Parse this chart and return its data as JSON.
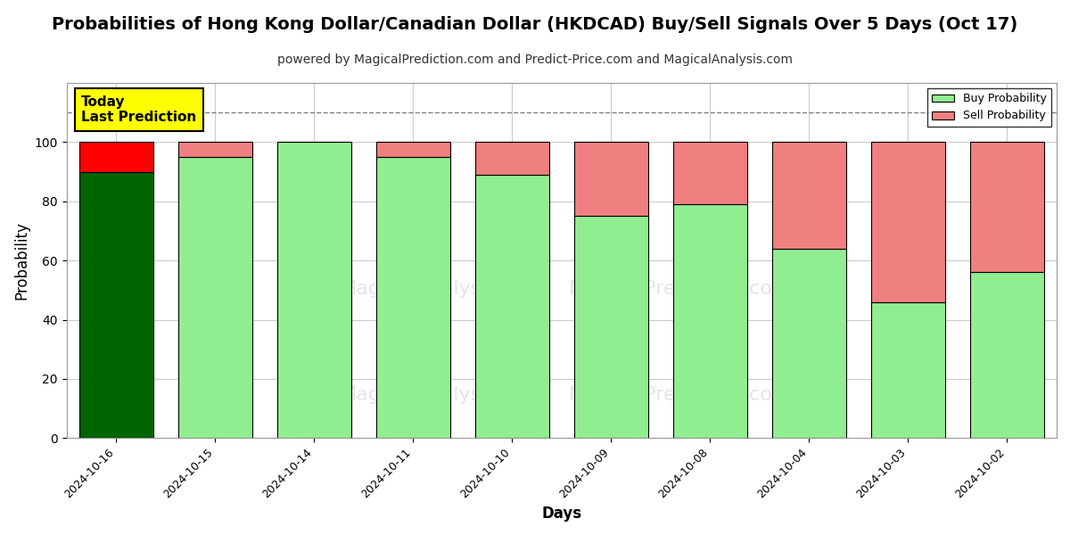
{
  "title": "Probabilities of Hong Kong Dollar/Canadian Dollar (HKDCAD) Buy/Sell Signals Over 5 Days (Oct 17)",
  "subtitle": "powered by MagicalPrediction.com and Predict-Price.com and MagicalAnalysis.com",
  "xlabel": "Days",
  "ylabel": "Probability",
  "categories": [
    "2024-10-16",
    "2024-10-15",
    "2024-10-14",
    "2024-10-11",
    "2024-10-10",
    "2024-10-09",
    "2024-10-08",
    "2024-10-04",
    "2024-10-03",
    "2024-10-02"
  ],
  "buy_values": [
    90,
    95,
    100,
    95,
    89,
    75,
    79,
    64,
    46,
    56
  ],
  "sell_values": [
    10,
    5,
    0,
    5,
    11,
    25,
    21,
    36,
    54,
    44
  ],
  "today_index": 0,
  "buy_color_today": "#006400",
  "sell_color_today": "#ff0000",
  "buy_color_normal": "#90EE90",
  "sell_color_normal": "#f08080",
  "bar_edge_color": "#000000",
  "ylim": [
    0,
    120
  ],
  "dashed_line_y": 110,
  "today_box_text": "Today\nLast Prediction",
  "today_box_facecolor": "#ffff00",
  "today_box_edgecolor": "#000000",
  "watermark_line1": "MagicalAnalysis.com",
  "watermark_line2": "MagicalPrediction.com",
  "background_color": "#ffffff",
  "grid_color": "#cccccc",
  "title_fontsize": 14,
  "subtitle_fontsize": 10,
  "ylabel_fontsize": 12,
  "xlabel_fontsize": 12,
  "bar_width": 0.75
}
